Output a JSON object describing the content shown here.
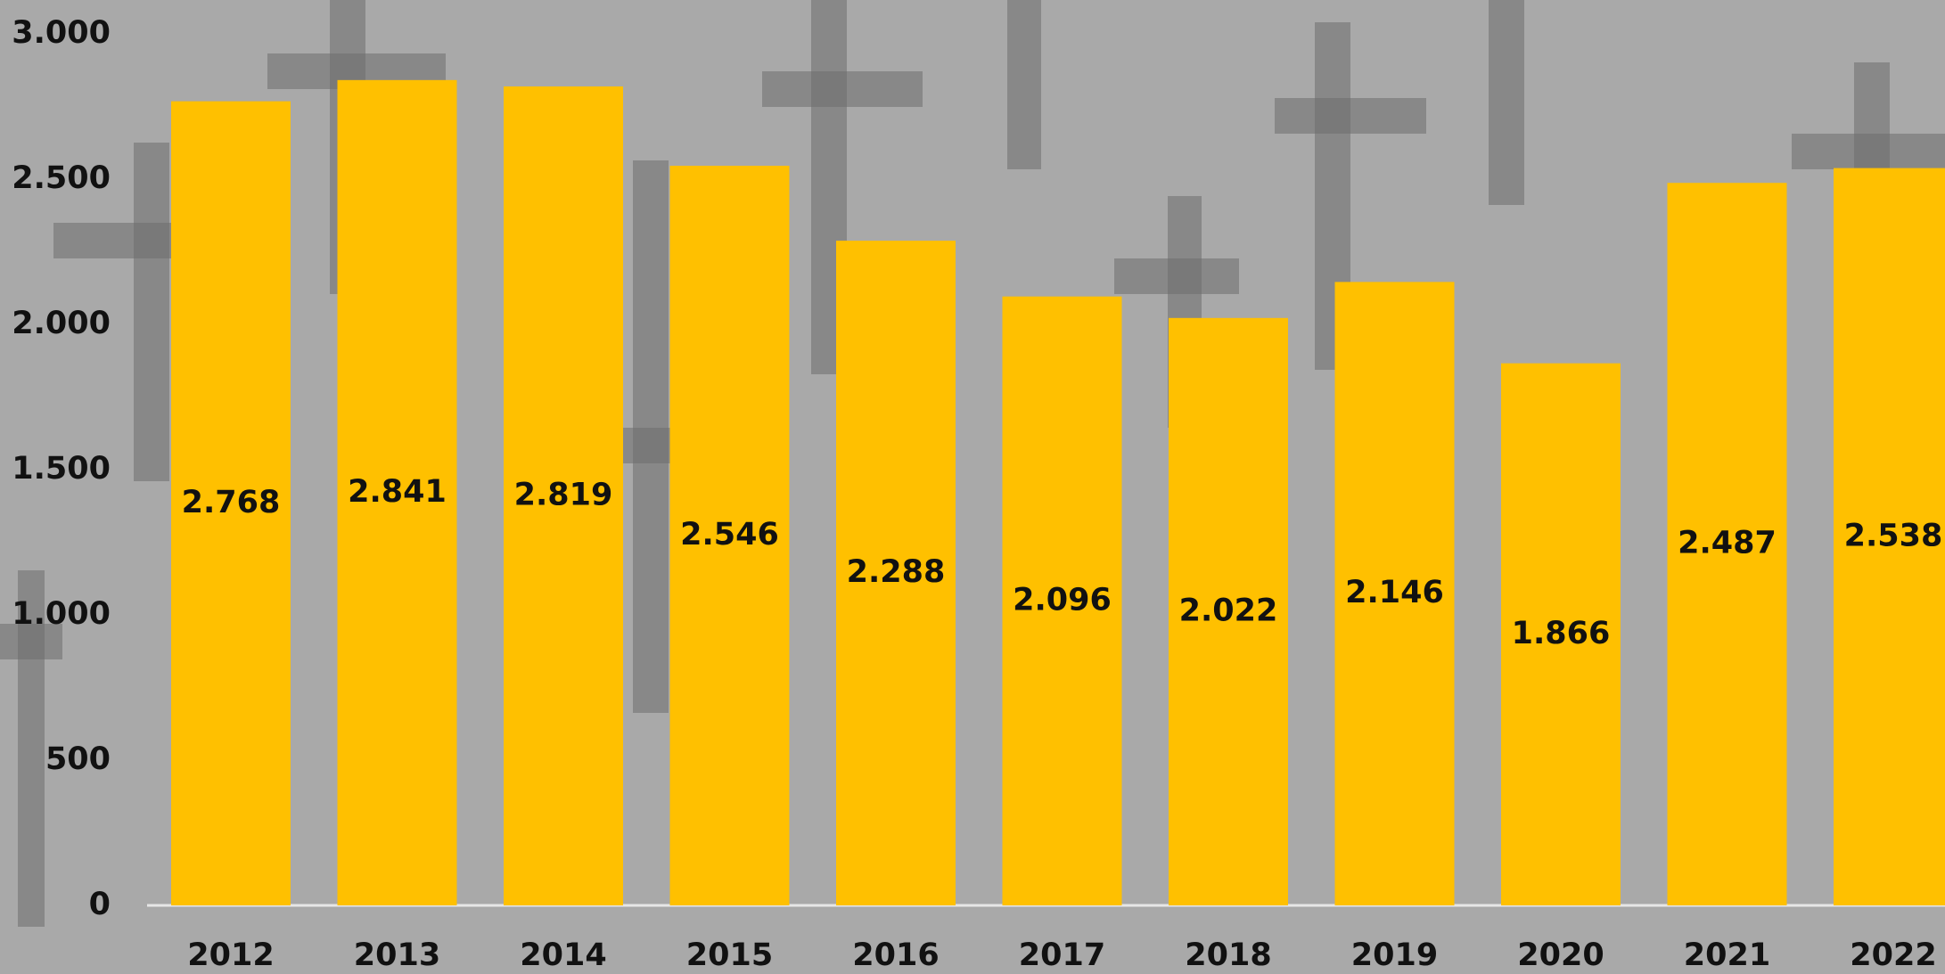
{
  "chart_data": {
    "type": "bar",
    "categories": [
      "2012",
      "2013",
      "2014",
      "2015",
      "2016",
      "2017",
      "2018",
      "2019",
      "2020",
      "2021",
      "2022"
    ],
    "values": [
      2768,
      2841,
      2819,
      2546,
      2288,
      2096,
      2022,
      2146,
      1866,
      2487,
      2538
    ],
    "value_labels": [
      "2.768",
      "2.841",
      "2.819",
      "2.546",
      "2.288",
      "2.096",
      "2.022",
      "2.146",
      "1.866",
      "2.487",
      "2.538"
    ],
    "color": "#ffc000",
    "ylim": [
      0,
      3000
    ],
    "yticks": [
      0,
      500,
      {
        "value": 1000,
        "label": "1.000"
      },
      {
        "value": 1500,
        "label": "1.500"
      },
      {
        "value": 2000,
        "label": "2.000"
      },
      {
        "value": 2500,
        "label": "2.500"
      },
      {
        "value": 3000,
        "label": "3.000"
      }
    ],
    "grid": false
  }
}
